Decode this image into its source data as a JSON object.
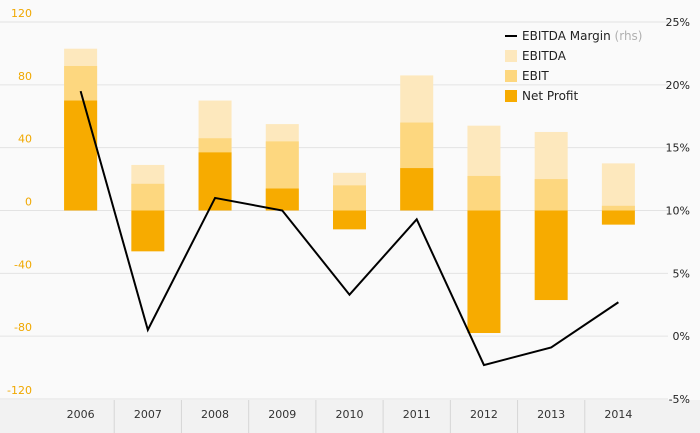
{
  "chart_data": {
    "type": "bar",
    "categories": [
      "2006",
      "2007",
      "2008",
      "2009",
      "2010",
      "2011",
      "2012",
      "2013",
      "2014"
    ],
    "series": [
      {
        "name": "Net Profit",
        "kind": "bar",
        "axis": "left",
        "color": "#f7ab00",
        "values": [
          70,
          -26,
          37,
          14,
          -12,
          27,
          -78,
          -57,
          -9
        ]
      },
      {
        "name": "EBIT",
        "kind": "bar",
        "axis": "left",
        "color": "#fdd77f",
        "values": [
          92,
          17,
          46,
          44,
          16,
          56,
          22,
          20,
          3
        ]
      },
      {
        "name": "EBITDA",
        "kind": "bar",
        "axis": "left",
        "color": "#fde8bd",
        "values": [
          103,
          29,
          70,
          55,
          24,
          86,
          54,
          50,
          30
        ]
      },
      {
        "name": "EBITDA Margin",
        "name_note": "(rhs)",
        "kind": "line",
        "axis": "right",
        "color": "#000000",
        "values": [
          19.5,
          0.5,
          11,
          10,
          3.3,
          9.3,
          -2.3,
          -0.9,
          2.7
        ]
      }
    ],
    "y_left": {
      "ticks": [
        120,
        80,
        40,
        0,
        -40,
        -80,
        -120
      ],
      "lim": [
        -120,
        120
      ],
      "tick_color": "#f0a800"
    },
    "y_right": {
      "ticks": [
        "25%",
        "20%",
        "15%",
        "10%",
        "5%",
        "0%",
        "-5%"
      ],
      "lim": [
        -5,
        25
      ]
    },
    "grid": true,
    "legend": "top-right"
  }
}
